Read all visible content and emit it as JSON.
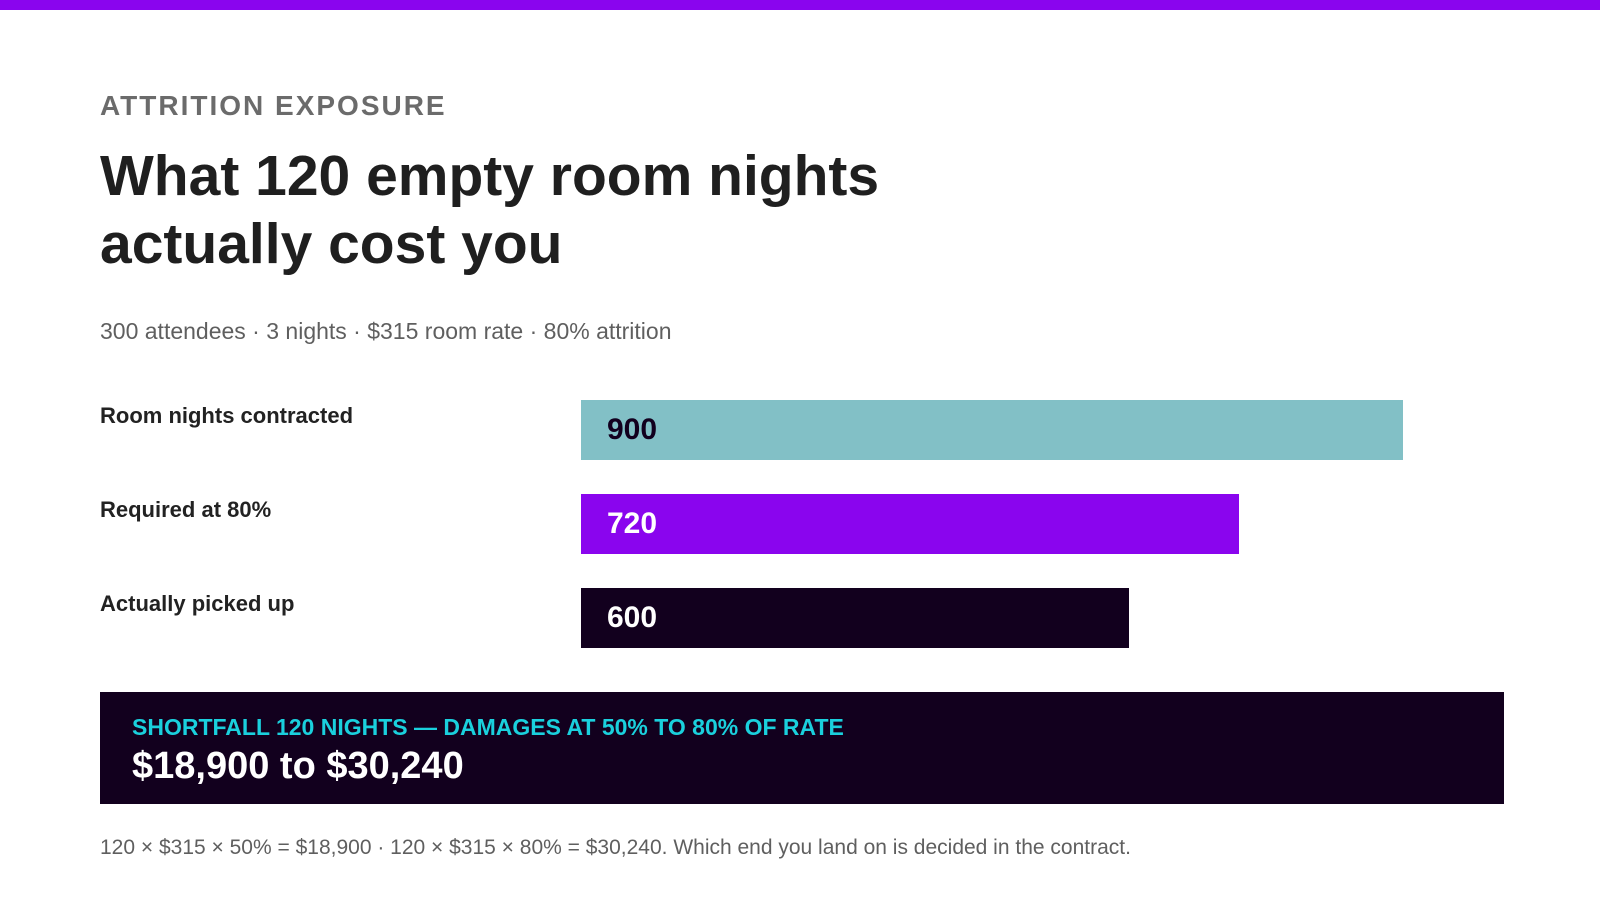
{
  "header": {
    "eyebrow": "ATTRITION EXPOSURE",
    "title_line1": "What 120 empty room nights",
    "title_line2": "actually cost you",
    "subtitle": "300 attendees · 3 nights · $315 room rate · 80% attrition"
  },
  "colors": {
    "accent": "#8a05ee",
    "contracted": "#82c0c6",
    "required": "#8a05ee",
    "picked_up": "#12001e",
    "callout_bg": "#12001e",
    "callout_kicker": "#1ad0dd"
  },
  "chart_data": {
    "type": "bar",
    "orientation": "horizontal",
    "categories": [
      "Room nights contracted",
      "Required at 80%",
      "Actually picked up"
    ],
    "values": [
      900,
      720,
      600
    ],
    "value_labels": [
      "900",
      "720",
      "600"
    ],
    "bar_colors": [
      "#82c0c6",
      "#8a05ee",
      "#12001e"
    ],
    "label_colors": [
      "#12001e",
      "#ffffff",
      "#ffffff"
    ],
    "xlim": [
      0,
      900
    ],
    "grid": false,
    "legend": "none"
  },
  "callout": {
    "kicker": "SHORTFALL 120 NIGHTS — DAMAGES AT 50% TO 80% OF RATE",
    "figure": "$18,900 to $30,240"
  },
  "footnote": "120 × $315 × 50% = $18,900 · 120 × $315 × 80% = $30,240. Which end you land on is decided in the contract."
}
